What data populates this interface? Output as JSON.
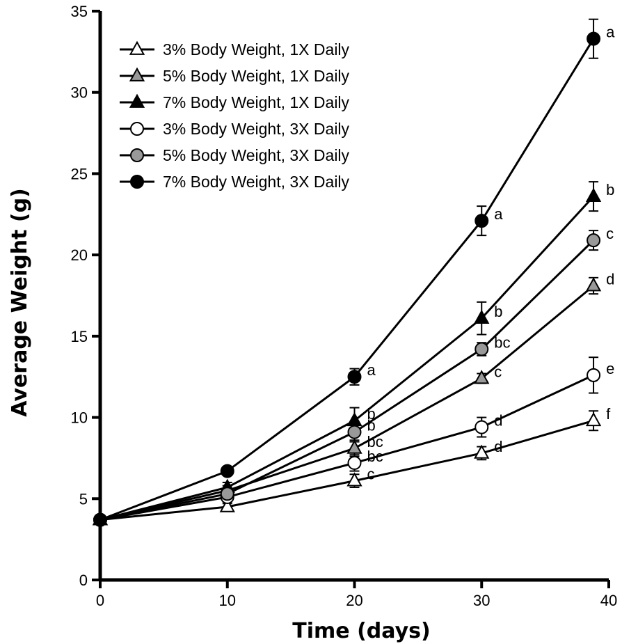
{
  "chart_data": {
    "type": "line",
    "title": "",
    "xlabel": "Time (days)",
    "ylabel": "Average Weight (g)",
    "xlim": [
      0,
      40
    ],
    "ylim": [
      0,
      35
    ],
    "xticks": [
      0,
      10,
      20,
      30,
      40
    ],
    "yticks": [
      0,
      5,
      10,
      15,
      20,
      25,
      30,
      35
    ],
    "grid": false,
    "legend_position": "top-left",
    "series": [
      {
        "name": "3% Body Weight, 1X Daily",
        "marker": "triangle",
        "fill": "#ffffff",
        "x": [
          0,
          10,
          20,
          30,
          38.8
        ],
        "y": [
          3.7,
          4.5,
          6.1,
          7.8,
          9.8
        ],
        "err": [
          0,
          0.2,
          0.4,
          0.4,
          0.6
        ],
        "labels": [
          "",
          "",
          "c",
          "d",
          "f"
        ]
      },
      {
        "name": "5% Body Weight, 1X Daily",
        "marker": "triangle",
        "fill": "#999999",
        "x": [
          0,
          10,
          20,
          30,
          38.8
        ],
        "y": [
          3.7,
          5.5,
          8.1,
          12.4,
          18.1
        ],
        "err": [
          0,
          0.3,
          0.5,
          0.3,
          0.5
        ],
        "labels": [
          "",
          "",
          "bc",
          "c",
          "d"
        ]
      },
      {
        "name": "7% Body Weight, 1X Daily",
        "marker": "triangle",
        "fill": "#000000",
        "x": [
          0,
          10,
          20,
          30,
          38.8
        ],
        "y": [
          3.7,
          5.7,
          9.8,
          16.1,
          23.6
        ],
        "err": [
          0,
          0.3,
          0.8,
          1.0,
          0.9
        ],
        "labels": [
          "",
          "",
          "b",
          "b",
          "b"
        ]
      },
      {
        "name": "3% Body Weight, 3X Daily",
        "marker": "circle",
        "fill": "#ffffff",
        "x": [
          0,
          10,
          20,
          30,
          38.8
        ],
        "y": [
          3.7,
          5.1,
          7.2,
          9.4,
          12.6
        ],
        "err": [
          0,
          0.3,
          0.5,
          0.6,
          1.1
        ],
        "labels": [
          "",
          "",
          "bc",
          "d",
          "e"
        ]
      },
      {
        "name": "5% Body Weight, 3X Daily",
        "marker": "circle",
        "fill": "#999999",
        "x": [
          0,
          10,
          20,
          30,
          38.8
        ],
        "y": [
          3.7,
          5.3,
          9.1,
          14.2,
          20.9
        ],
        "err": [
          0,
          0.3,
          0.6,
          0.4,
          0.6
        ],
        "labels": [
          "",
          "",
          "b",
          "bc",
          "c"
        ]
      },
      {
        "name": "7% Body Weight, 3X Daily",
        "marker": "circle",
        "fill": "#000000",
        "x": [
          0,
          10,
          20,
          30,
          38.8
        ],
        "y": [
          3.7,
          6.7,
          12.5,
          22.1,
          33.3
        ],
        "err": [
          0,
          0.2,
          0.5,
          0.9,
          1.2
        ],
        "labels": [
          "",
          "",
          "a",
          "a",
          "a"
        ]
      }
    ]
  }
}
